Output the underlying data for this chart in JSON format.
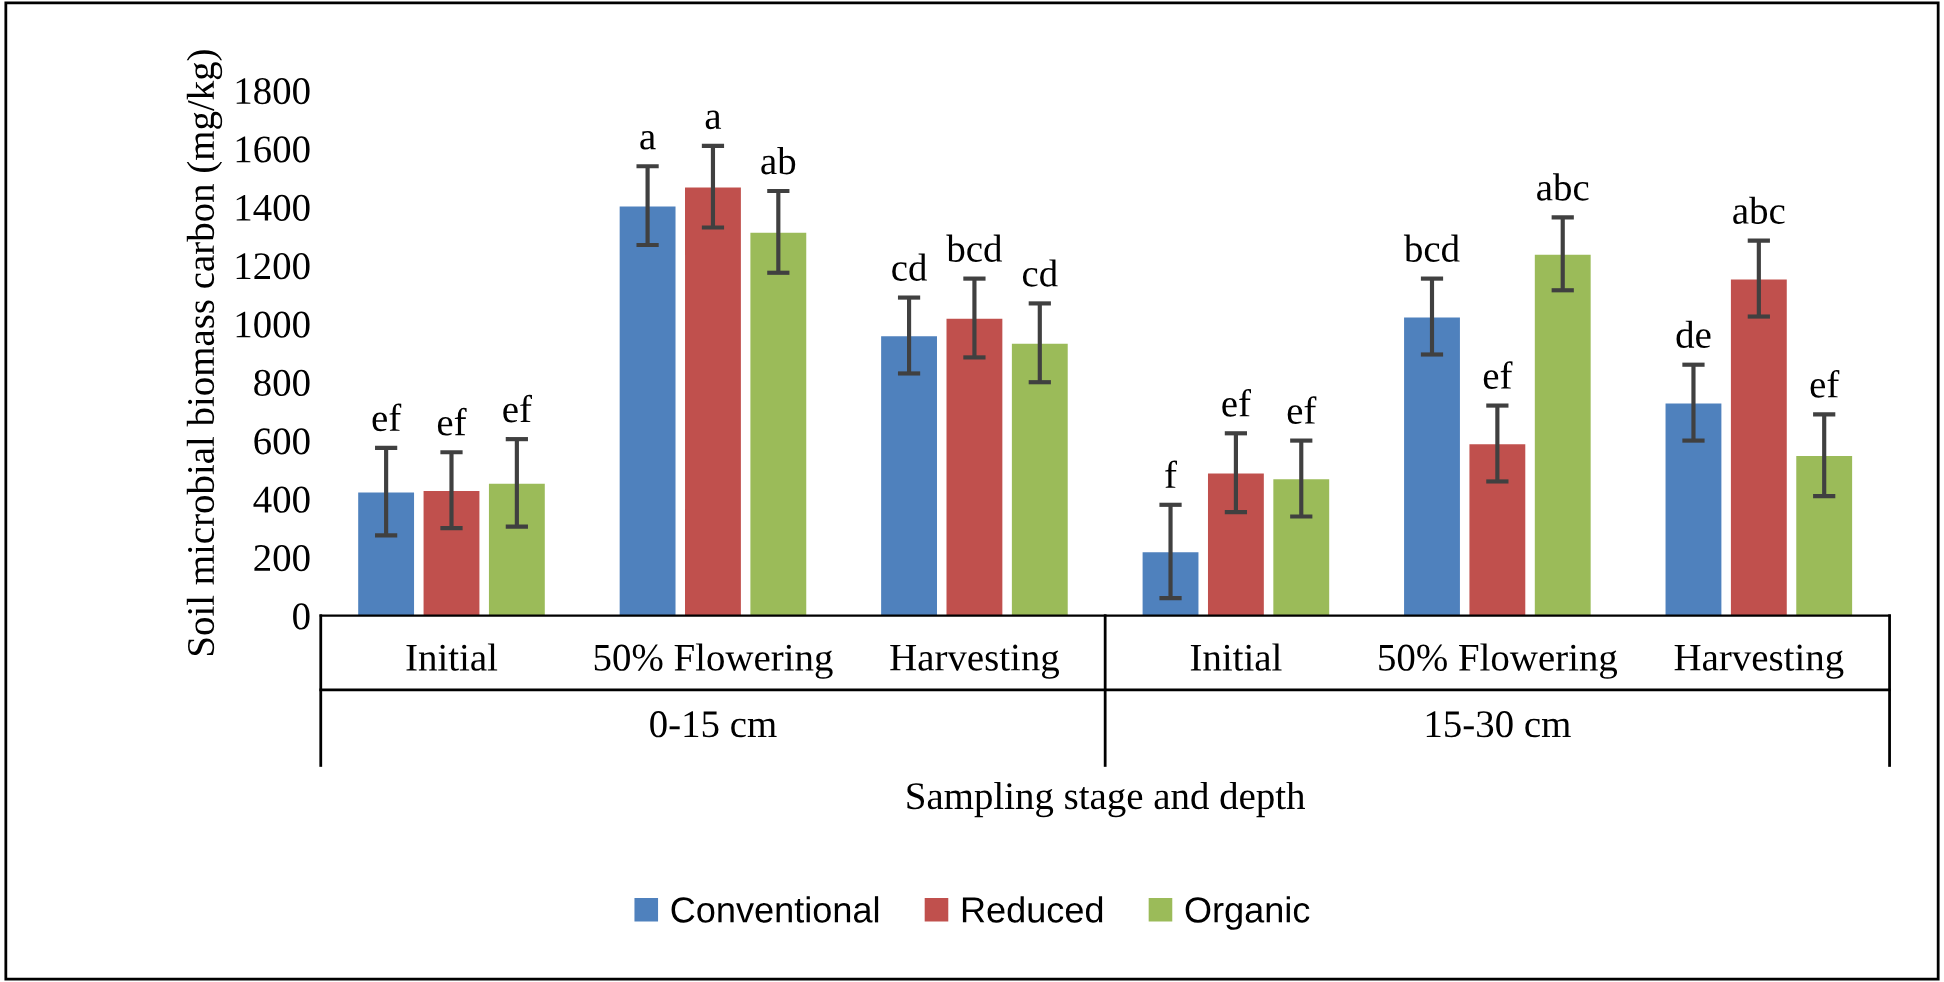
{
  "chart_data": {
    "type": "bar",
    "ylabel": "Soil microbial biomass carbon (mg/kg)",
    "xlabel": "Sampling stage and depth",
    "categories": [
      "Initial",
      "50% Flowering",
      "Harvesting",
      "Initial",
      "50% Flowering",
      "Harvesting"
    ],
    "annotations": [
      "0-15 cm",
      "15-30 cm"
    ],
    "series": [
      {
        "name": "Conventional",
        "color": "#4f81bd",
        "values": [
          425,
          1405,
          960,
          220,
          1025,
          730
        ],
        "errors": [
          150,
          135,
          130,
          160,
          130,
          130
        ],
        "value_labels": [
          "ef",
          "a",
          "cd",
          "f",
          "bcd",
          "de"
        ]
      },
      {
        "name": "Reduced",
        "color": "#c0504d",
        "values": [
          430,
          1470,
          1020,
          490,
          590,
          1155
        ],
        "errors": [
          130,
          140,
          135,
          135,
          130,
          130
        ],
        "value_labels": [
          "ef",
          "a",
          "bcd",
          "ef",
          "ef",
          "abc"
        ]
      },
      {
        "name": "Organic",
        "color": "#9bbb59",
        "values": [
          455,
          1315,
          935,
          470,
          1240,
          550
        ],
        "errors": [
          150,
          140,
          135,
          130,
          125,
          140
        ],
        "value_labels": [
          "ef",
          "ab",
          "cd",
          "ef",
          "abc",
          "ef"
        ]
      }
    ],
    "ylim": [
      0,
      1800
    ],
    "yticks": [
      0,
      200,
      400,
      600,
      800,
      1000,
      1200,
      1400,
      1600,
      1800
    ],
    "grid": false,
    "legend": "bottom"
  }
}
